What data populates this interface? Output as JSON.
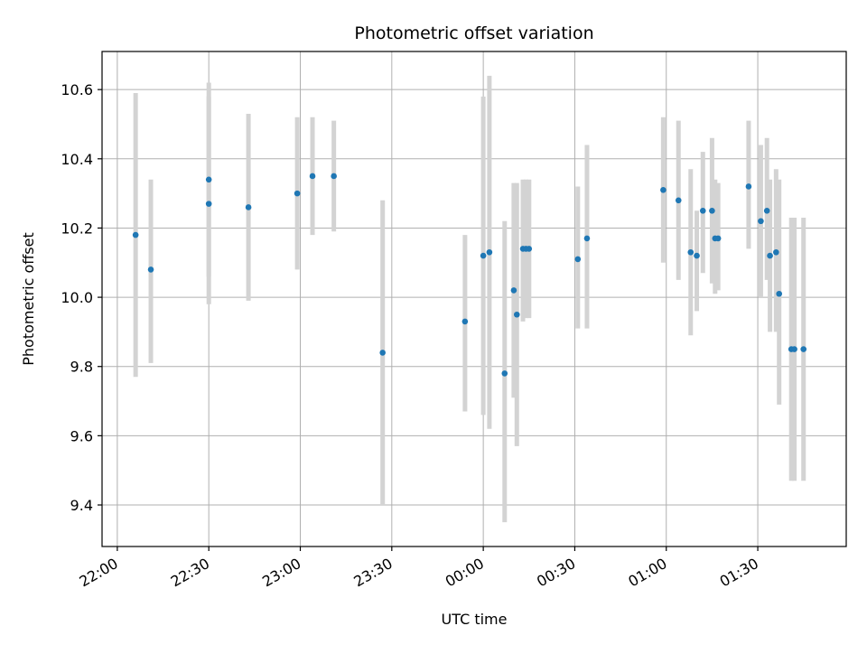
{
  "chart_data": {
    "type": "scatter",
    "title": "Photometric offset variation",
    "xlabel": "UTC time",
    "ylabel": "Photometric offset",
    "x_unit": "UTC",
    "xlim": [
      "21:55",
      "01:59"
    ],
    "ylim": [
      9.28,
      10.71
    ],
    "x_ticks": [
      "22:00",
      "22:30",
      "23:00",
      "23:30",
      "00:00",
      "00:30",
      "01:00",
      "01:30"
    ],
    "y_ticks": [
      9.4,
      9.6,
      9.8,
      10.0,
      10.2,
      10.4,
      10.6
    ],
    "grid": true,
    "colors": {
      "point": "#1f77b4",
      "errorbar": "#d3d3d3",
      "grid": "#b0b0b0"
    },
    "series": [
      {
        "points": [
          {
            "time": "22:06",
            "y": 10.18,
            "low": 9.77,
            "high": 10.59
          },
          {
            "time": "22:11",
            "y": 10.08,
            "low": 9.81,
            "high": 10.34
          },
          {
            "time": "22:30",
            "y": 10.34,
            "low": 10.06,
            "high": 10.62
          },
          {
            "time": "22:30",
            "y": 10.27,
            "low": 9.98,
            "high": 10.58
          },
          {
            "time": "22:43",
            "y": 10.26,
            "low": 9.99,
            "high": 10.53
          },
          {
            "time": "22:59",
            "y": 10.3,
            "low": 10.08,
            "high": 10.52
          },
          {
            "time": "23:04",
            "y": 10.35,
            "low": 10.18,
            "high": 10.52
          },
          {
            "time": "23:11",
            "y": 10.35,
            "low": 10.19,
            "high": 10.51
          },
          {
            "time": "23:27",
            "y": 9.84,
            "low": 9.4,
            "high": 10.28
          },
          {
            "time": "23:54",
            "y": 9.93,
            "low": 9.67,
            "high": 10.18
          },
          {
            "time": "00:00",
            "y": 10.12,
            "low": 9.66,
            "high": 10.58
          },
          {
            "time": "00:02",
            "y": 10.13,
            "low": 9.62,
            "high": 10.64
          },
          {
            "time": "00:07",
            "y": 9.78,
            "low": 9.35,
            "high": 10.22
          },
          {
            "time": "00:10",
            "y": 10.02,
            "low": 9.71,
            "high": 10.33
          },
          {
            "time": "00:11",
            "y": 9.95,
            "low": 9.57,
            "high": 10.33
          },
          {
            "time": "00:13",
            "y": 10.14,
            "low": 9.93,
            "high": 10.34
          },
          {
            "time": "00:14",
            "y": 10.14,
            "low": 9.94,
            "high": 10.34
          },
          {
            "time": "00:15",
            "y": 10.14,
            "low": 9.94,
            "high": 10.34
          },
          {
            "time": "00:31",
            "y": 10.11,
            "low": 9.91,
            "high": 10.32
          },
          {
            "time": "00:34",
            "y": 10.17,
            "low": 9.91,
            "high": 10.44
          },
          {
            "time": "00:59",
            "y": 10.31,
            "low": 10.1,
            "high": 10.52
          },
          {
            "time": "01:04",
            "y": 10.28,
            "low": 10.05,
            "high": 10.51
          },
          {
            "time": "01:08",
            "y": 10.13,
            "low": 9.89,
            "high": 10.37
          },
          {
            "time": "01:10",
            "y": 10.12,
            "low": 9.96,
            "high": 10.25
          },
          {
            "time": "01:12",
            "y": 10.25,
            "low": 10.07,
            "high": 10.42
          },
          {
            "time": "01:15",
            "y": 10.25,
            "low": 10.04,
            "high": 10.46
          },
          {
            "time": "01:16",
            "y": 10.17,
            "low": 10.01,
            "high": 10.34
          },
          {
            "time": "01:17",
            "y": 10.17,
            "low": 10.02,
            "high": 10.33
          },
          {
            "time": "01:27",
            "y": 10.32,
            "low": 10.14,
            "high": 10.51
          },
          {
            "time": "01:31",
            "y": 10.22,
            "low": 10.0,
            "high": 10.44
          },
          {
            "time": "01:33",
            "y": 10.25,
            "low": 10.05,
            "high": 10.46
          },
          {
            "time": "01:34",
            "y": 10.12,
            "low": 9.9,
            "high": 10.34
          },
          {
            "time": "01:36",
            "y": 10.13,
            "low": 9.9,
            "high": 10.37
          },
          {
            "time": "01:37",
            "y": 10.01,
            "low": 9.69,
            "high": 10.34
          },
          {
            "time": "01:41",
            "y": 9.85,
            "low": 9.47,
            "high": 10.23
          },
          {
            "time": "01:42",
            "y": 9.85,
            "low": 9.47,
            "high": 10.23
          },
          {
            "time": "01:45",
            "y": 9.85,
            "low": 9.47,
            "high": 10.23
          }
        ]
      }
    ]
  }
}
